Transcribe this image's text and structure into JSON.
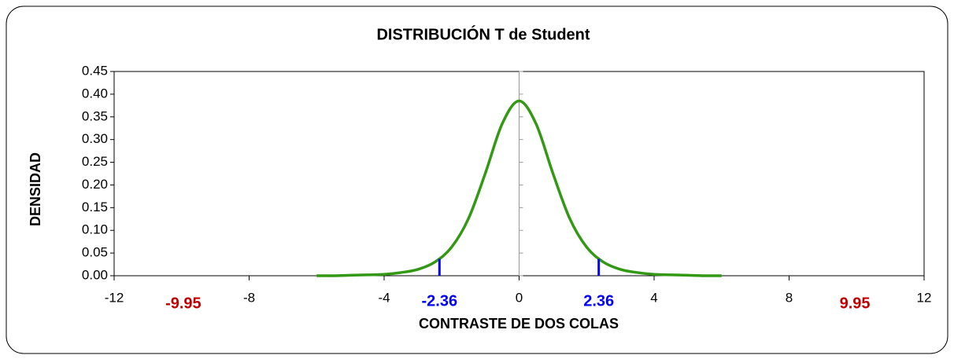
{
  "chart_data": {
    "type": "line",
    "title": "DISTRIBUCIÓN T de Student",
    "x_label": "CONTRASTE DE DOS COLAS",
    "y_label": "DENSIDAD",
    "x": [
      -6,
      -5.5,
      -5,
      -4.5,
      -4,
      -3.5,
      -3,
      -2.5,
      -2,
      -1.5,
      -1,
      -0.5,
      0,
      0.5,
      1,
      1.5,
      2,
      2.5,
      3,
      3.5,
      4,
      4.5,
      5,
      5.5,
      6
    ],
    "series": [
      {
        "color": "#339914",
        "values": [
          0.0,
          0.0,
          0.001,
          0.002,
          0.003,
          0.007,
          0.014,
          0.03,
          0.063,
          0.126,
          0.226,
          0.335,
          0.385,
          0.335,
          0.226,
          0.126,
          0.063,
          0.03,
          0.014,
          0.007,
          0.003,
          0.002,
          0.001,
          0.0,
          0.0
        ]
      }
    ],
    "critical_lines": [
      {
        "x": -2.36,
        "y": 0.037,
        "color": "#0000ff"
      },
      {
        "x": 2.36,
        "y": 0.037,
        "color": "#0000ff"
      }
    ],
    "annotations": [
      {
        "x": -9.95,
        "color": "#c00000"
      },
      {
        "x": 9.95,
        "color": "#c00000"
      }
    ],
    "xlim": [
      -12,
      12
    ],
    "xticks": [
      -12,
      -8,
      -4,
      0,
      4,
      8,
      12
    ],
    "ylim": [
      0,
      0.45
    ],
    "yticks": [
      {
        "value": 0,
        "label": "0.00"
      },
      {
        "value": 0.05,
        "label": "0.05"
      },
      {
        "value": 0.1,
        "label": "0.10"
      },
      {
        "value": 0.15,
        "label": "0.15"
      },
      {
        "value": 0.2,
        "label": "0.20"
      },
      {
        "value": 0.25,
        "label": "0.25"
      },
      {
        "value": 0.3,
        "label": "0.30"
      },
      {
        "value": 0.35,
        "label": "0.35"
      },
      {
        "value": 0.4,
        "label": "0.40"
      },
      {
        "value": 0.45,
        "label": "0.45"
      }
    ]
  }
}
